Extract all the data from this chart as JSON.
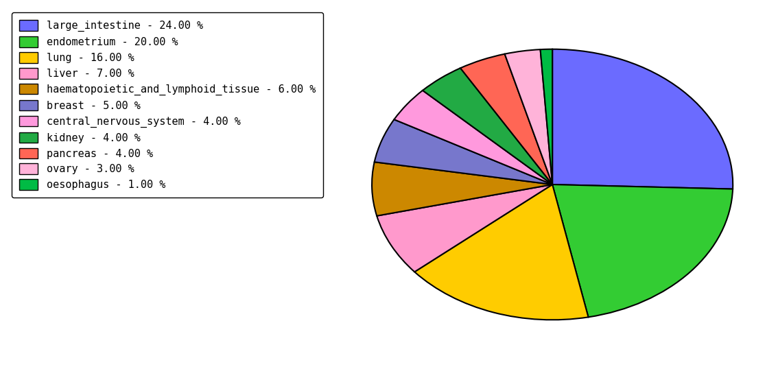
{
  "labels": [
    "large_intestine",
    "endometrium",
    "lung",
    "liver",
    "haematopoietic_and_lymphoid_tissue",
    "breast",
    "central_nervous_system",
    "kidney",
    "pancreas",
    "ovary",
    "oesophagus"
  ],
  "values": [
    24.0,
    20.0,
    16.0,
    7.0,
    6.0,
    5.0,
    4.0,
    4.0,
    4.0,
    3.0,
    1.0
  ],
  "colors": [
    "#6B6BFF",
    "#33CC33",
    "#FFCC00",
    "#FF99CC",
    "#CC8800",
    "#7777CC",
    "#FF99DD",
    "#22AA44",
    "#FF6655",
    "#FFB3D9",
    "#00BB44"
  ],
  "legend_labels": [
    "large_intestine - 24.00 %",
    "endometrium - 20.00 %",
    "lung - 16.00 %",
    "liver - 7.00 %",
    "haematopoietic_and_lymphoid_tissue - 6.00 %",
    "breast - 5.00 %",
    "central_nervous_system - 4.00 %",
    "kidney - 4.00 %",
    "pancreas - 4.00 %",
    "ovary - 3.00 %",
    "oesophagus - 1.00 %"
  ],
  "startangle": 90,
  "figsize": [
    11.34,
    5.38
  ],
  "dpi": 100
}
